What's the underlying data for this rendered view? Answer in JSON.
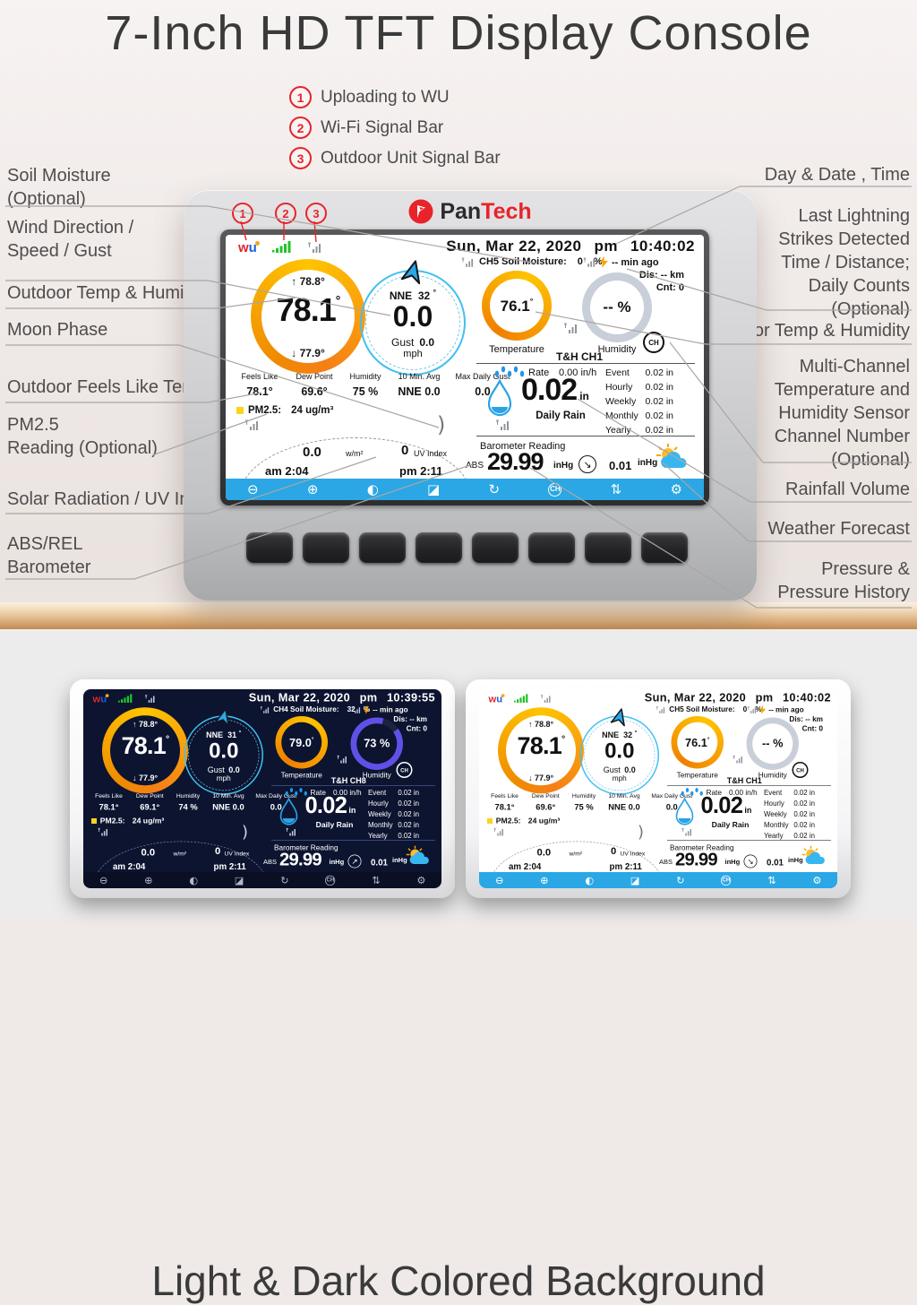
{
  "page": {
    "title": "7-Inch HD TFT Display Console",
    "section2_title": "Light & Dark Colored Background"
  },
  "brand": {
    "prefix": "Pan",
    "suffix": "Tech"
  },
  "callouts": [
    {
      "num": "1",
      "label": "Uploading to WU"
    },
    {
      "num": "2",
      "label": "Wi-Fi Signal Bar"
    },
    {
      "num": "3",
      "label": "Outdoor Unit Signal Bar"
    }
  ],
  "left_labels": [
    "Soil Moisture\n(Optional)",
    "Wind Direction /\nSpeed / Gust",
    "Outdoor Temp & Humidity",
    "Moon Phase",
    "Outdoor Feels Like Temp",
    "PM2.5\nReading (Optional)",
    "Solar Radiation / UV Index",
    "ABS/REL\nBarometer"
  ],
  "right_labels": [
    "Day & Date , Time",
    "Last Lightning\nStrikes Detected\nTime / Distance;\nDaily Counts\n(Optional)",
    "Indoor Temp & Humidity",
    "Multi-Channel\nTemperature and\nHumidity Sensor\nChannel Number\n(Optional)",
    "Rainfall Volume",
    "Weather Forecast",
    "Pressure &\nPressure History"
  ],
  "units": {
    "deg": "°"
  },
  "ch_label": "CH",
  "moon_glyph": ")",
  "bottom_bar_icons": [
    {
      "name": "minus-icon",
      "glyph": "⊖"
    },
    {
      "name": "plus-icon",
      "glyph": "⊕"
    },
    {
      "name": "contrast-icon",
      "glyph": "◐"
    },
    {
      "name": "display-adjust-icon",
      "glyph": "◪"
    },
    {
      "name": "refresh-icon",
      "glyph": "↻"
    },
    {
      "name": "channel-cycle-icon",
      "glyph": "CH"
    },
    {
      "name": "updown-icon",
      "glyph": "⇅"
    },
    {
      "name": "settings-gear-icon",
      "glyph": "⚙"
    }
  ],
  "screens": [
    {
      "theme": "light",
      "date": "Sun, Mar 22, 2020",
      "ampm": "pm",
      "time": "10:40:02",
      "soil": {
        "channel": "CH5 Soil Moisture:",
        "value": "0",
        "unit": "%"
      },
      "lightning": {
        "ago": "-- min ago",
        "dis": "Dis:  --  km",
        "cnt": "Cnt: 0"
      },
      "outdoor": {
        "high": "↑ 78.8°",
        "big": "78.1",
        "low": "↓ 77.9°"
      },
      "wind": {
        "dir": "NNE",
        "deg": "32",
        "big": "0.0",
        "gust_label": "Gust",
        "gust": "0.0",
        "unit": "mph"
      },
      "indoor": {
        "value": "76.1",
        "label": "Temperature"
      },
      "humidity": {
        "value": "-- %",
        "label": "Humidity"
      },
      "th_header": "T&H CH1",
      "stats": {
        "h": [
          "Feels Like",
          "Dew Point",
          "Humidity",
          "10 Min. Avg",
          "Max Daily Gust"
        ],
        "v": [
          "78.1°",
          "69.6°",
          "75 %",
          "NNE 0.0",
          "0.0"
        ]
      },
      "pm25": {
        "label": "PM2.5:",
        "value": "24 ug/m³"
      },
      "solar": {
        "rad": "0.0",
        "rad_unit": "w/m²",
        "uv": "0",
        "uv_label": "UV Index",
        "rise": "am 2:04",
        "set": "pm 2:11"
      },
      "rain": {
        "rate_label": "Rate",
        "rate": "0.00 in/h",
        "big": "0.02",
        "unit": "in",
        "daily_label": "Daily Rain",
        "rows": [
          {
            "label": "Event",
            "value": "0.02 in"
          },
          {
            "label": "Hourly",
            "value": "0.02 in"
          },
          {
            "label": "Weekly",
            "value": "0.02 in"
          },
          {
            "label": "Monthly",
            "value": "0.02 in"
          },
          {
            "label": "Yearly",
            "value": "0.02 in"
          }
        ]
      },
      "baro": {
        "title": "Barometer Reading",
        "mode": "ABS",
        "value": "29.99",
        "unit": "inHg",
        "trend_dir": "↘",
        "trend": "0.01",
        "trend_unit": "inHg"
      }
    },
    {
      "theme": "dark",
      "date": "Sun, Mar 22, 2020",
      "ampm": "pm",
      "time": "10:39:55",
      "soil": {
        "channel": "CH4 Soil Moisture:",
        "value": "32",
        "unit": "%"
      },
      "lightning": {
        "ago": "-- min ago",
        "dis": "Dis:  --  km",
        "cnt": "Cnt: 0"
      },
      "outdoor": {
        "high": "↑ 78.8°",
        "big": "78.1",
        "low": "↓ 77.9°"
      },
      "wind": {
        "dir": "NNE",
        "deg": "31",
        "big": "0.0",
        "gust_label": "Gust",
        "gust": "0.0",
        "unit": "mph"
      },
      "indoor": {
        "value": "79.0",
        "label": "Temperature"
      },
      "humidity": {
        "value": "73 %",
        "label": "Humidity"
      },
      "th_header": "T&H CH8",
      "stats": {
        "h": [
          "Feels Like",
          "Dew Point",
          "Humidity",
          "10 Min. Avg",
          "Max Daily Gust"
        ],
        "v": [
          "78.1°",
          "69.1°",
          "74 %",
          "NNE 0.0",
          "0.0"
        ]
      },
      "pm25": {
        "label": "PM2.5:",
        "value": "24 ug/m³"
      },
      "solar": {
        "rad": "0.0",
        "rad_unit": "w/m²",
        "uv": "0",
        "uv_label": "UV Index",
        "rise": "am 2:04",
        "set": "pm 2:11"
      },
      "rain": {
        "rate_label": "Rate",
        "rate": "0.00 in/h",
        "big": "0.02",
        "unit": "in",
        "daily_label": "Daily Rain",
        "rows": [
          {
            "label": "Event",
            "value": "0.02 in"
          },
          {
            "label": "Hourly",
            "value": "0.02 in"
          },
          {
            "label": "Weekly",
            "value": "0.02 in"
          },
          {
            "label": "Monthly",
            "value": "0.02 in"
          },
          {
            "label": "Yearly",
            "value": "0.02 in"
          }
        ]
      },
      "baro": {
        "title": "Barometer Reading",
        "mode": "ABS",
        "value": "29.99",
        "unit": "inHg",
        "trend_dir": "↗",
        "trend": "0.01",
        "trend_unit": "inHg"
      }
    },
    {
      "theme": "light",
      "date": "Sun, Mar 22, 2020",
      "ampm": "pm",
      "time": "10:40:02",
      "soil": {
        "channel": "CH5 Soil Moisture:",
        "value": "0",
        "unit": "%"
      },
      "lightning": {
        "ago": "-- min ago",
        "dis": "Dis:  --  km",
        "cnt": "Cnt: 0"
      },
      "outdoor": {
        "high": "↑ 78.8°",
        "big": "78.1",
        "low": "↓ 77.9°"
      },
      "wind": {
        "dir": "NNE",
        "deg": "32",
        "big": "0.0",
        "gust_label": "Gust",
        "gust": "0.0",
        "unit": "mph"
      },
      "indoor": {
        "value": "76.1",
        "label": "Temperature"
      },
      "humidity": {
        "value": "-- %",
        "label": "Humidity"
      },
      "th_header": "T&H CH1",
      "stats": {
        "h": [
          "Feels Like",
          "Dew Point",
          "Humidity",
          "10 Min. Avg",
          "Max Daily Gust"
        ],
        "v": [
          "78.1°",
          "69.6°",
          "75 %",
          "NNE 0.0",
          "0.0"
        ]
      },
      "pm25": {
        "label": "PM2.5:",
        "value": "24 ug/m³"
      },
      "solar": {
        "rad": "0.0",
        "rad_unit": "w/m²",
        "uv": "0",
        "uv_label": "UV Index",
        "rise": "am 2:04",
        "set": "pm 2:11"
      },
      "rain": {
        "rate_label": "Rate",
        "rate": "0.00 in/h",
        "big": "0.02",
        "unit": "in",
        "daily_label": "Daily Rain",
        "rows": [
          {
            "label": "Event",
            "value": "0.02 in"
          },
          {
            "label": "Hourly",
            "value": "0.02 in"
          },
          {
            "label": "Weekly",
            "value": "0.02 in"
          },
          {
            "label": "Monthly",
            "value": "0.02 in"
          },
          {
            "label": "Yearly",
            "value": "0.02 in"
          }
        ]
      },
      "baro": {
        "title": "Barometer Reading",
        "mode": "ABS",
        "value": "29.99",
        "unit": "inHg",
        "trend_dir": "↘",
        "trend": "0.01",
        "trend_unit": "inHg"
      }
    }
  ]
}
